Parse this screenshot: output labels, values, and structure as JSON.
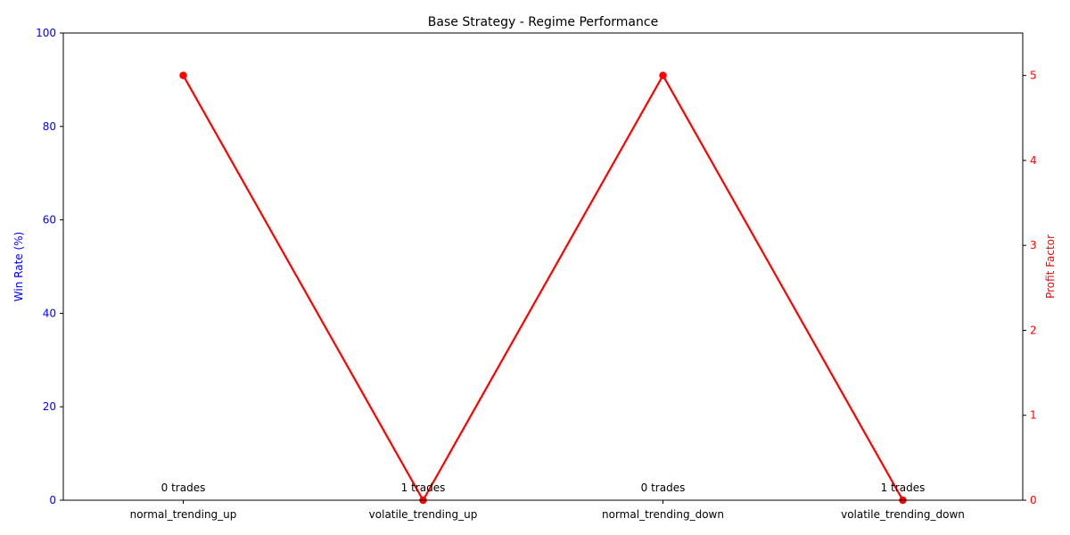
{
  "chart_data": {
    "type": "line",
    "title": "Base Strategy - Regime Performance",
    "categories": [
      "normal_trending_up",
      "volatile_trending_up",
      "normal_trending_down",
      "volatile_trending_down"
    ],
    "left_axis": {
      "label": "Win Rate (%)",
      "ylim": [
        0,
        100
      ],
      "ticks": [
        0,
        20,
        40,
        60,
        80,
        100
      ],
      "color": "#0000ff"
    },
    "right_axis": {
      "label": "Profit Factor",
      "ylim": [
        0,
        5.5
      ],
      "ticks": [
        0,
        1,
        2,
        3,
        4,
        5
      ],
      "color": "#ff0000"
    },
    "series": [
      {
        "name": "Profit Factor",
        "axis": "right",
        "values": [
          5,
          0,
          5,
          0
        ],
        "color": "#ff0000",
        "marker": "circle"
      }
    ],
    "annotations": [
      "0 trades",
      "1 trades",
      "0 trades",
      "1 trades"
    ],
    "grid": false,
    "legend": "none"
  }
}
